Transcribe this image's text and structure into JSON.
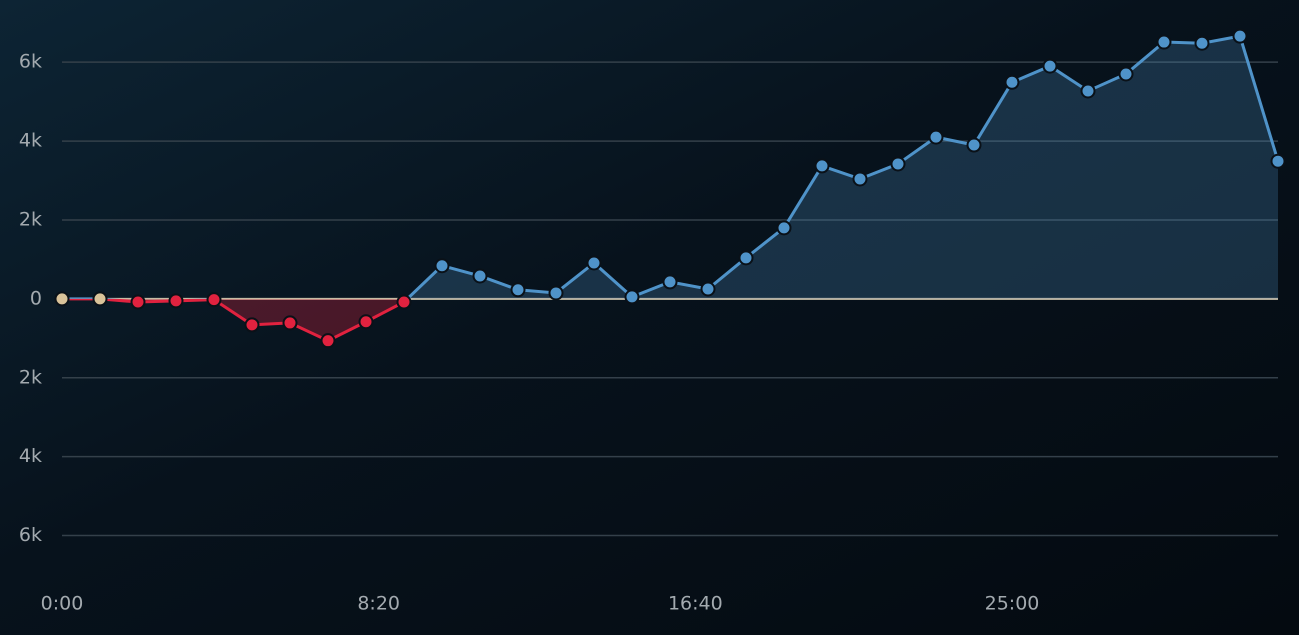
{
  "chart_data": {
    "type": "line",
    "x": [
      0,
      60,
      120,
      180,
      240,
      300,
      360,
      420,
      480,
      540,
      600,
      660,
      720,
      780,
      840,
      900,
      960,
      1020,
      1080,
      1140,
      1200,
      1260,
      1320,
      1380,
      1440,
      1500,
      1560,
      1620,
      1680,
      1740,
      1800,
      1860,
      1920
    ],
    "values": [
      0,
      0,
      -80,
      -50,
      -20,
      -660,
      -610,
      -1060,
      -580,
      -80,
      840,
      580,
      230,
      150,
      910,
      50,
      430,
      250,
      1040,
      1800,
      3370,
      3040,
      3420,
      4100,
      3900,
      5490,
      5900,
      5270,
      5700,
      6510,
      6480,
      6660,
      3490
    ],
    "xlim": [
      0,
      1920
    ],
    "xticks": [
      {
        "value": 0,
        "label": "0:00"
      },
      {
        "value": 500,
        "label": "8:20"
      },
      {
        "value": 1000,
        "label": "16:40"
      },
      {
        "value": 1500,
        "label": "25:00"
      }
    ],
    "ylim": [
      -7000,
      7500
    ],
    "yticks": [
      {
        "value": 6000,
        "label": "6k"
      },
      {
        "value": 4000,
        "label": "4k"
      },
      {
        "value": 2000,
        "label": "2k"
      },
      0,
      {
        "value": -2000,
        "label": "2k"
      },
      {
        "value": -4000,
        "label": "4k"
      },
      {
        "value": -6000,
        "label": "6k"
      }
    ],
    "grid": true,
    "colors": {
      "positive": "#4f93c9",
      "negative": "#e1223f",
      "even": "#d9c39a"
    }
  }
}
